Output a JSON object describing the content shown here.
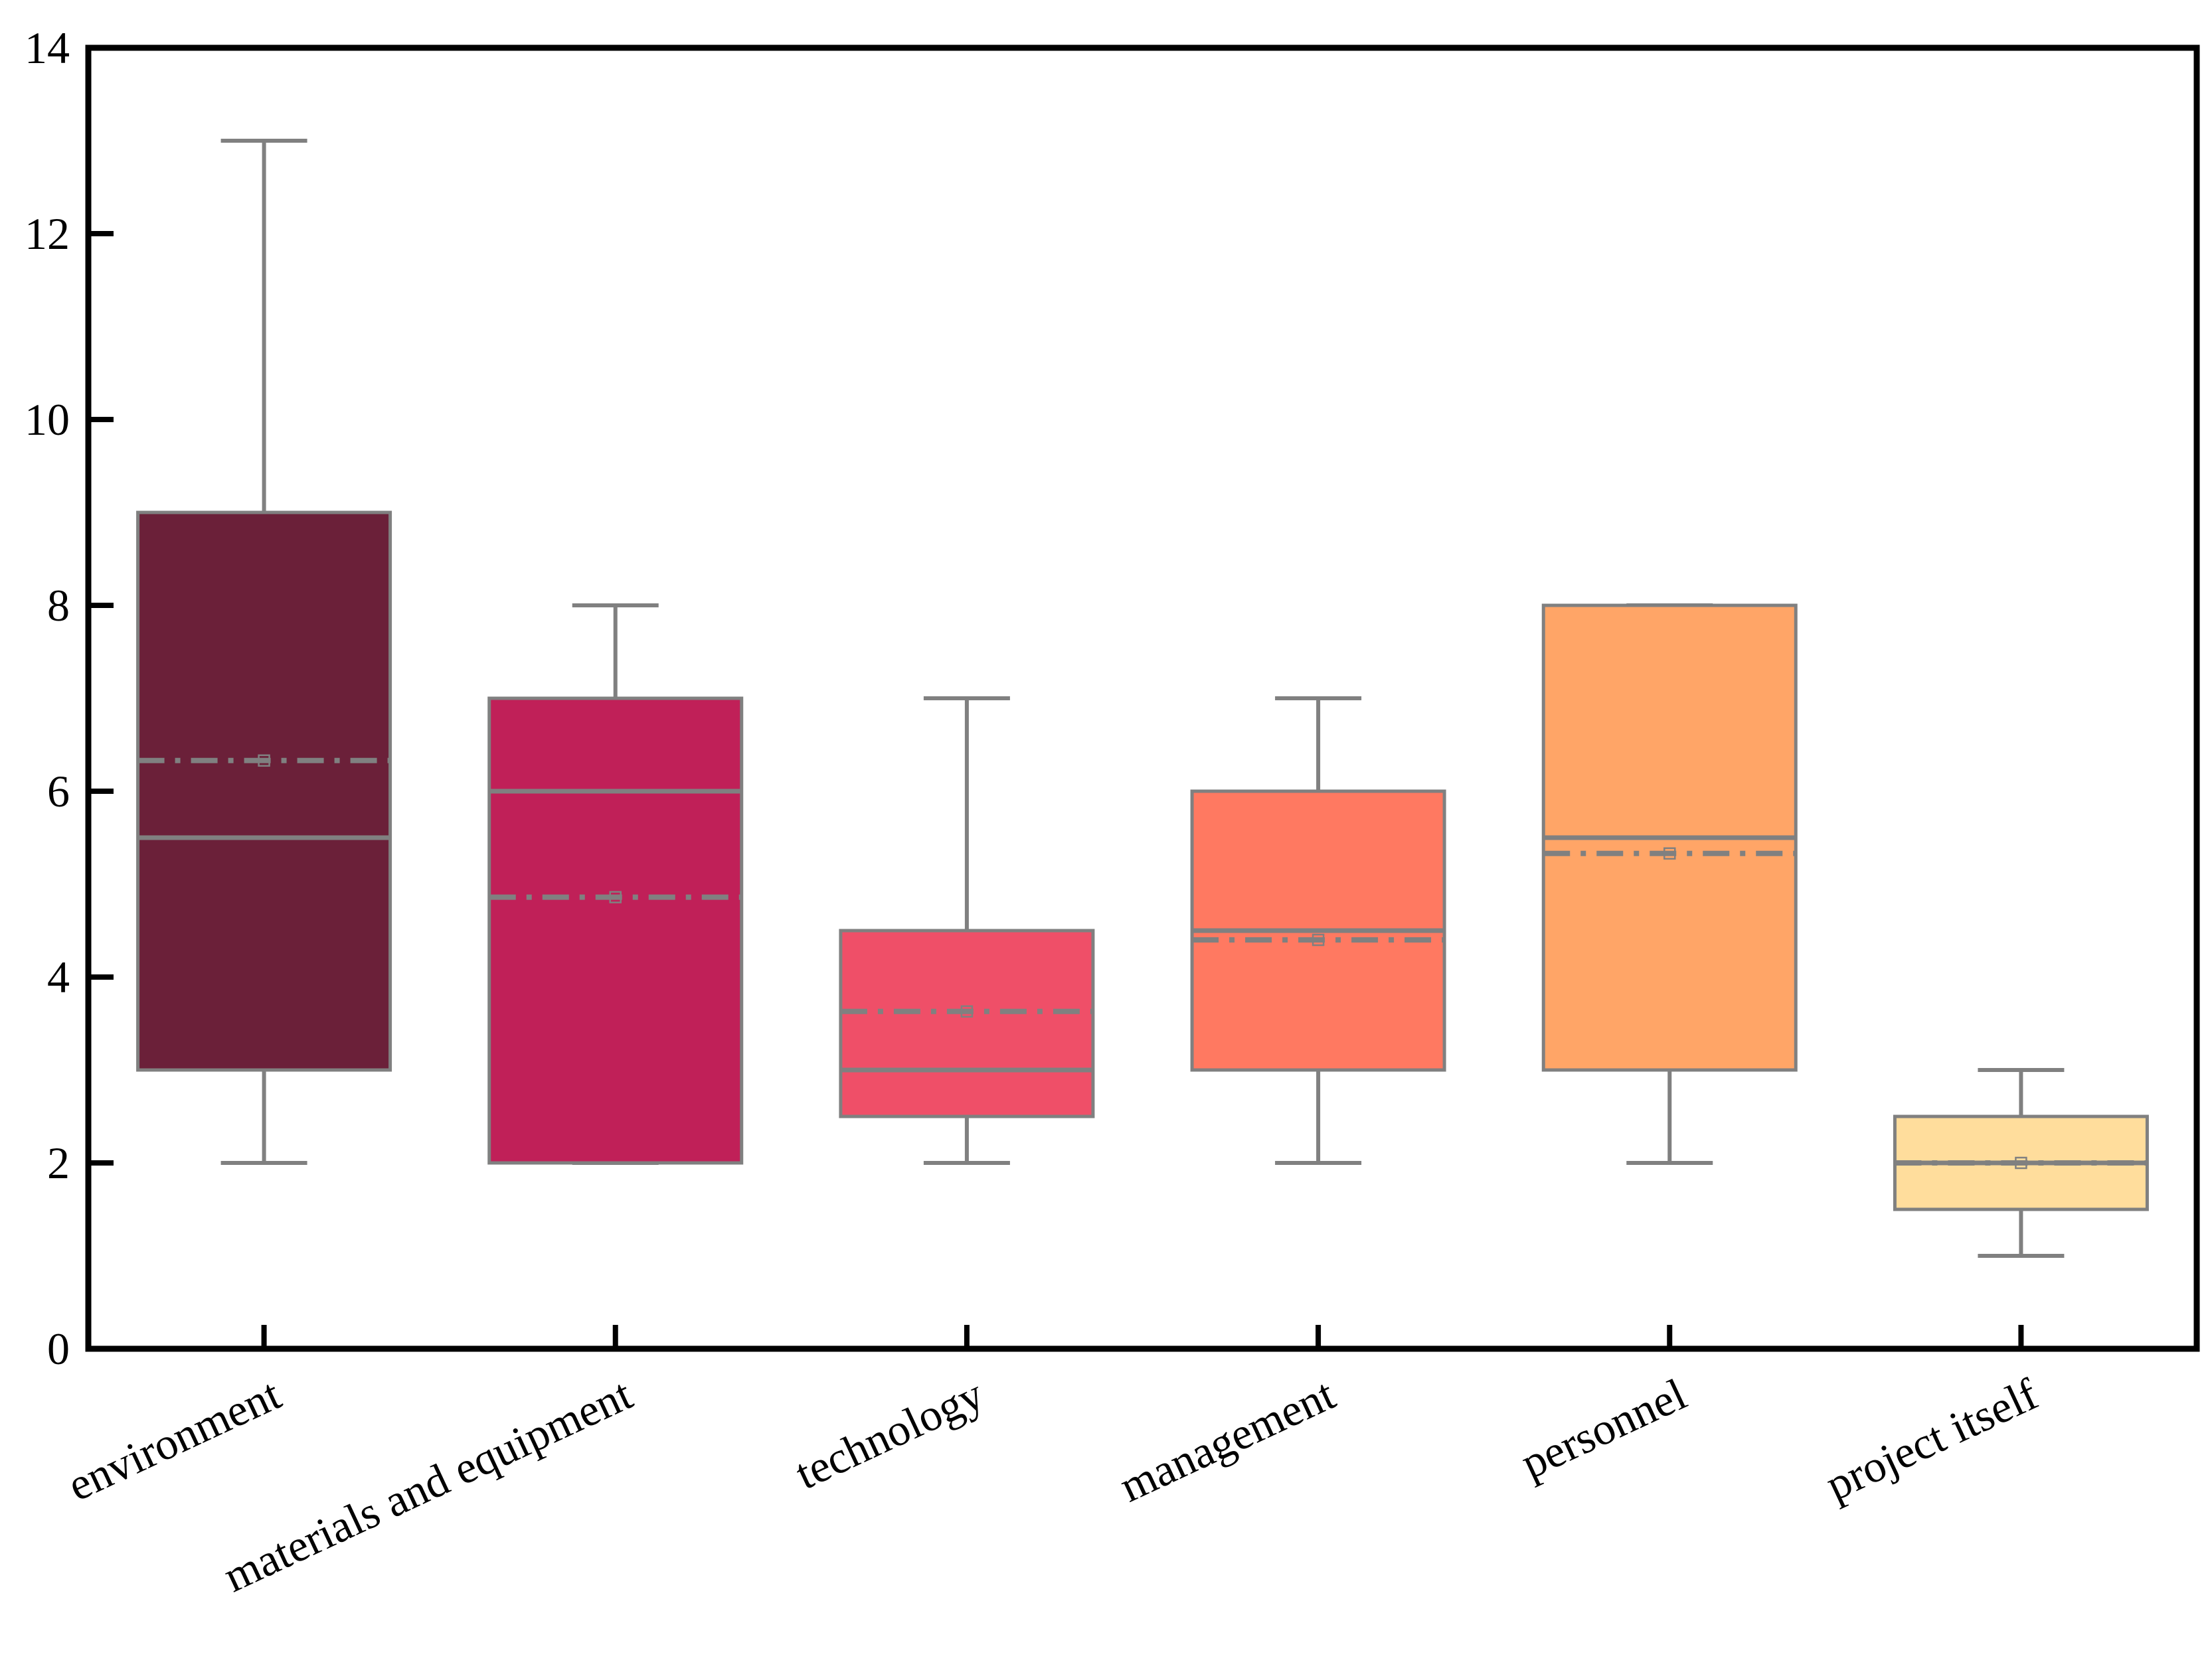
{
  "chart_data": {
    "type": "box",
    "title": "",
    "xlabel": "",
    "ylabel": "",
    "ylim": [
      0,
      14
    ],
    "yticks": [
      "0",
      "2",
      "4",
      "6",
      "8",
      "10",
      "12",
      "14"
    ],
    "grid": false,
    "categories": [
      "environment",
      "materials and equipment",
      "technology",
      "management",
      "personnel",
      "project itself"
    ],
    "series": [
      {
        "name": "environment",
        "min": 2,
        "q1": 3,
        "median": 5.5,
        "q3": 9,
        "max": 13,
        "mean": 6.33,
        "color": "#6b2039"
      },
      {
        "name": "materials and equipment",
        "min": 2,
        "q1": 2,
        "median": 6,
        "q3": 7,
        "max": 8,
        "mean": 4.86,
        "color": "#c02058"
      },
      {
        "name": "technology",
        "min": 2,
        "q1": 2.5,
        "median": 3,
        "q3": 4.5,
        "max": 7,
        "mean": 3.63,
        "color": "#ef4f68"
      },
      {
        "name": "management",
        "min": 2,
        "q1": 3,
        "median": 4.5,
        "q3": 6,
        "max": 7,
        "mean": 4.4,
        "color": "#ff7961"
      },
      {
        "name": "personnel",
        "min": 2,
        "q1": 3,
        "median": 5.5,
        "q3": 8,
        "max": 8,
        "mean": 5.33,
        "color": "#ffa567"
      },
      {
        "name": "project itself",
        "min": 1,
        "q1": 1.5,
        "median": 2,
        "q3": 2.5,
        "max": 3,
        "mean": 2,
        "color": "#ffdd9c"
      }
    ],
    "line_color": "#808080",
    "axis_color": "#000000"
  }
}
